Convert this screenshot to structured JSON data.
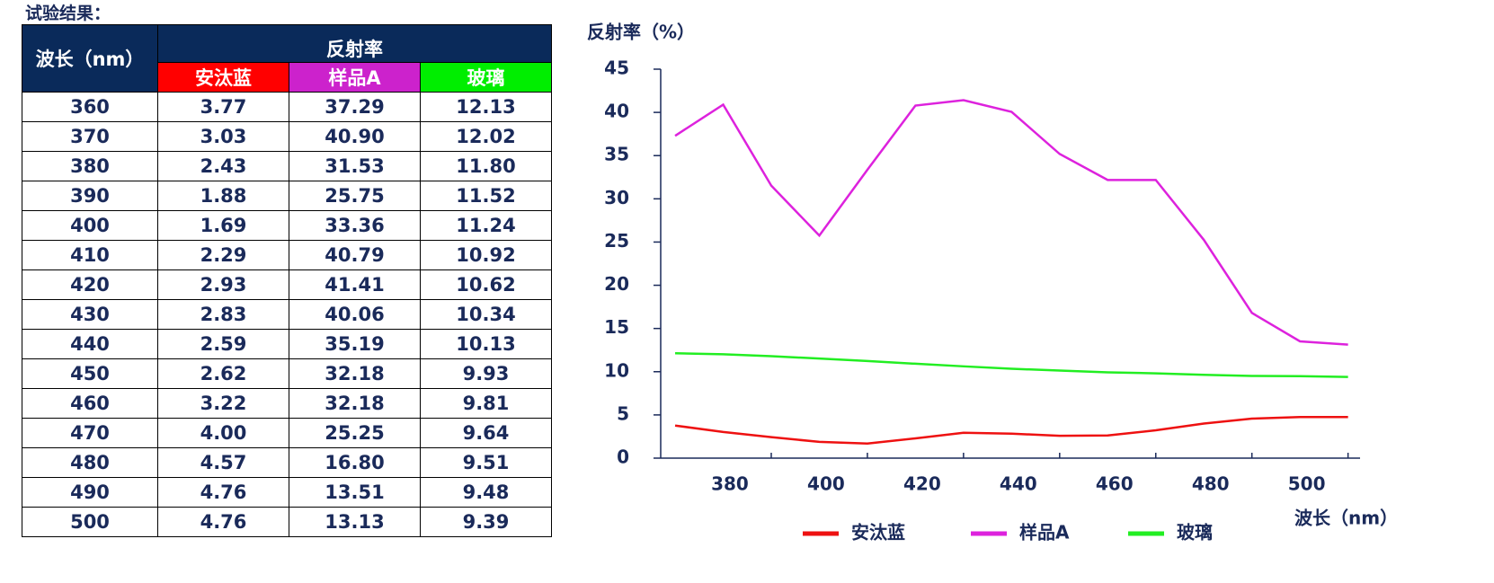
{
  "title": "试验结果：",
  "table": {
    "header": {
      "wavelength": "波长（nm）",
      "reflectance": "反射率",
      "columns": [
        "安汰蓝",
        "样品A",
        "玻璃"
      ]
    },
    "rows": [
      [
        "360",
        "3.77",
        "37.29",
        "12.13"
      ],
      [
        "370",
        "3.03",
        "40.90",
        "12.02"
      ],
      [
        "380",
        "2.43",
        "31.53",
        "11.80"
      ],
      [
        "390",
        "1.88",
        "25.75",
        "11.52"
      ],
      [
        "400",
        "1.69",
        "33.36",
        "11.24"
      ],
      [
        "410",
        "2.29",
        "40.79",
        "10.92"
      ],
      [
        "420",
        "2.93",
        "41.41",
        "10.62"
      ],
      [
        "430",
        "2.83",
        "40.06",
        "10.34"
      ],
      [
        "440",
        "2.59",
        "35.19",
        "10.13"
      ],
      [
        "450",
        "2.62",
        "32.18",
        "9.93"
      ],
      [
        "460",
        "3.22",
        "32.18",
        "9.81"
      ],
      [
        "470",
        "4.00",
        "25.25",
        "9.64"
      ],
      [
        "480",
        "4.57",
        "16.80",
        "9.51"
      ],
      [
        "490",
        "4.76",
        "13.51",
        "9.48"
      ],
      [
        "500",
        "4.76",
        "13.13",
        "9.39"
      ]
    ]
  },
  "chart_data": {
    "type": "line",
    "y_label": "反射率（%）",
    "x_label": "波长（nm）",
    "x": [
      360,
      370,
      380,
      390,
      400,
      410,
      420,
      430,
      440,
      450,
      460,
      470,
      480,
      490,
      500
    ],
    "series": [
      {
        "name": "安汰蓝",
        "color": "#ee1111",
        "values": [
          3.77,
          3.03,
          2.43,
          1.88,
          1.69,
          2.29,
          2.93,
          2.83,
          2.59,
          2.62,
          3.22,
          4.0,
          4.57,
          4.76,
          4.76
        ]
      },
      {
        "name": "样品A",
        "color": "#dd22dd",
        "values": [
          37.29,
          40.9,
          31.53,
          25.75,
          33.36,
          40.79,
          41.41,
          40.06,
          35.19,
          32.18,
          32.18,
          25.25,
          16.8,
          13.51,
          13.13
        ]
      },
      {
        "name": "玻璃",
        "color": "#22ee22",
        "values": [
          12.13,
          12.02,
          11.8,
          11.52,
          11.24,
          10.92,
          10.62,
          10.34,
          10.13,
          9.93,
          9.81,
          9.64,
          9.51,
          9.48,
          9.39
        ]
      }
    ],
    "xlim": [
      357,
      502.5
    ],
    "xticks": [
      380,
      400,
      420,
      440,
      460,
      480,
      500
    ],
    "ylim": [
      0,
      45
    ],
    "yticks": [
      0,
      5,
      10,
      15,
      20,
      25,
      30,
      35,
      40,
      45
    ],
    "legend": "bottom"
  }
}
